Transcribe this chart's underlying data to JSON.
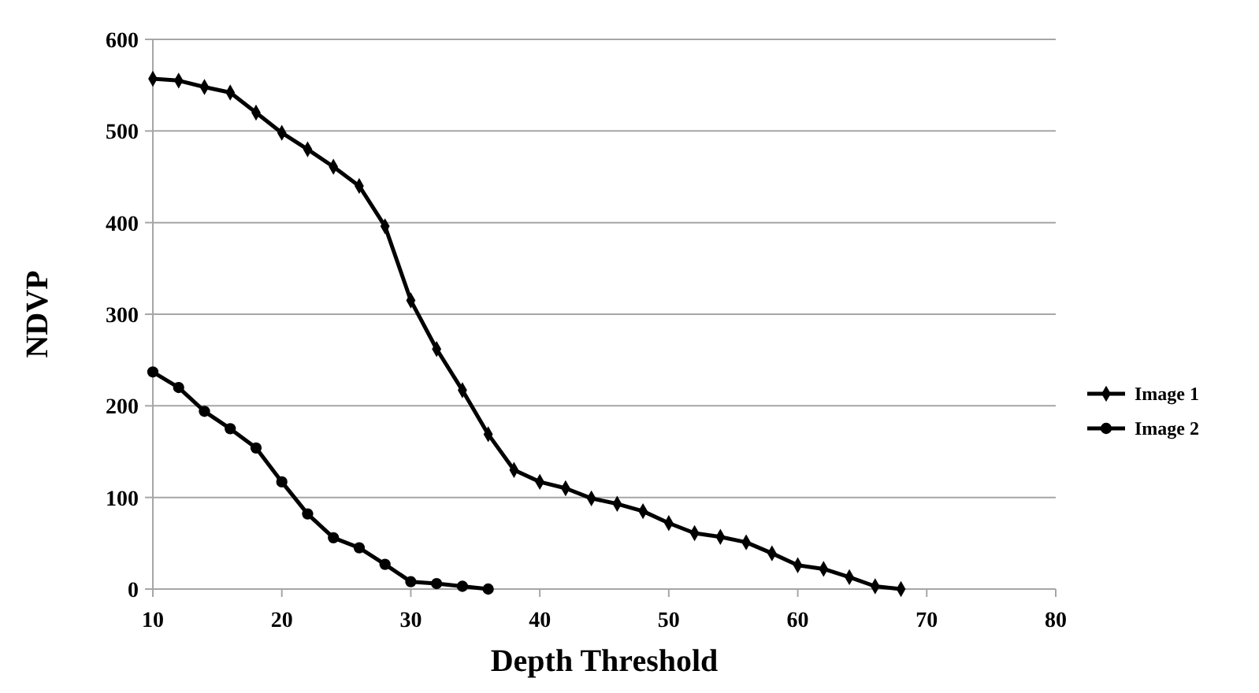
{
  "chart_data": {
    "type": "line",
    "xlabel": "Depth Threshold",
    "ylabel": "NDVP",
    "xlim": [
      10,
      80
    ],
    "xticks": [
      10,
      20,
      30,
      40,
      50,
      60,
      70,
      80
    ],
    "ylim": [
      0,
      600
    ],
    "yticks": [
      0,
      100,
      200,
      300,
      400,
      500,
      600
    ],
    "grid": "y",
    "legend": "right",
    "line_style": "solid",
    "series": [
      {
        "name": "Image 1",
        "color": "#000000",
        "marker": "diamond",
        "x": [
          10,
          12,
          14,
          16,
          18,
          20,
          22,
          24,
          26,
          28,
          30,
          32,
          34,
          36,
          38,
          40,
          42,
          44,
          46,
          48,
          50,
          52,
          54,
          56,
          58,
          60,
          62,
          64,
          66,
          68
        ],
        "values": [
          557,
          555,
          548,
          542,
          520,
          498,
          480,
          461,
          440,
          396,
          315,
          262,
          217,
          169,
          130,
          117,
          110,
          99,
          93,
          85,
          72,
          61,
          57,
          51,
          39,
          26,
          22,
          13,
          3,
          0
        ]
      },
      {
        "name": "Image 2",
        "color": "#000000",
        "marker": "circle",
        "x": [
          10,
          12,
          14,
          16,
          18,
          20,
          22,
          24,
          26,
          28,
          30,
          32,
          34,
          36
        ],
        "values": [
          237,
          220,
          194,
          175,
          154,
          117,
          82,
          56,
          45,
          27,
          8,
          6,
          3,
          0
        ]
      }
    ]
  }
}
